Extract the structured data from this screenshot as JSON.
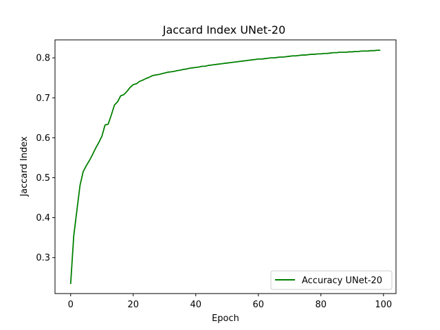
{
  "chart_data": {
    "type": "line",
    "title": "Jaccard Index UNet-20",
    "xlabel": "Epoch",
    "ylabel": "Jaccard Index",
    "xlim": [
      -5,
      104
    ],
    "ylim": [
      0.21,
      0.845
    ],
    "xticks": [
      0,
      20,
      40,
      60,
      80,
      100
    ],
    "yticks": [
      0.3,
      0.4,
      0.5,
      0.6,
      0.7,
      0.8
    ],
    "xtick_labels": [
      "0",
      "20",
      "40",
      "60",
      "80",
      "100"
    ],
    "ytick_labels": [
      "0.3",
      "0.4",
      "0.5",
      "0.6",
      "0.7",
      "0.8"
    ],
    "grid": false,
    "legend_position": "lower-right",
    "series": [
      {
        "name": "Accuracy UNet-20",
        "color": "#008000",
        "x": [
          0,
          1,
          2,
          3,
          4,
          5,
          6,
          7,
          8,
          9,
          10,
          11,
          12,
          13,
          14,
          15,
          16,
          17,
          18,
          19,
          20,
          21,
          22,
          23,
          24,
          25,
          26,
          27,
          28,
          29,
          30,
          31,
          32,
          33,
          34,
          35,
          36,
          37,
          38,
          39,
          40,
          41,
          42,
          43,
          44,
          45,
          46,
          47,
          48,
          49,
          50,
          51,
          52,
          53,
          54,
          55,
          56,
          57,
          58,
          59,
          60,
          61,
          62,
          63,
          64,
          65,
          66,
          67,
          68,
          69,
          70,
          71,
          72,
          73,
          74,
          75,
          76,
          77,
          78,
          79,
          80,
          81,
          82,
          83,
          84,
          85,
          86,
          87,
          88,
          89,
          90,
          91,
          92,
          93,
          94,
          95,
          96,
          97,
          98,
          99
        ],
        "y": [
          0.234,
          0.355,
          0.418,
          0.481,
          0.515,
          0.53,
          0.543,
          0.558,
          0.574,
          0.588,
          0.604,
          0.632,
          0.634,
          0.657,
          0.682,
          0.69,
          0.705,
          0.708,
          0.716,
          0.726,
          0.733,
          0.735,
          0.741,
          0.744,
          0.748,
          0.751,
          0.755,
          0.757,
          0.758,
          0.76,
          0.762,
          0.764,
          0.765,
          0.766,
          0.768,
          0.769,
          0.771,
          0.772,
          0.774,
          0.775,
          0.776,
          0.777,
          0.779,
          0.779,
          0.781,
          0.782,
          0.783,
          0.784,
          0.785,
          0.786,
          0.787,
          0.788,
          0.789,
          0.79,
          0.791,
          0.792,
          0.793,
          0.794,
          0.795,
          0.796,
          0.797,
          0.797,
          0.798,
          0.799,
          0.8,
          0.8,
          0.801,
          0.802,
          0.802,
          0.803,
          0.804,
          0.805,
          0.805,
          0.806,
          0.807,
          0.807,
          0.808,
          0.809,
          0.809,
          0.81,
          0.81,
          0.811,
          0.811,
          0.812,
          0.813,
          0.813,
          0.814,
          0.814,
          0.814,
          0.815,
          0.815,
          0.816,
          0.816,
          0.817,
          0.817,
          0.817,
          0.818,
          0.818,
          0.819,
          0.819
        ]
      }
    ]
  }
}
